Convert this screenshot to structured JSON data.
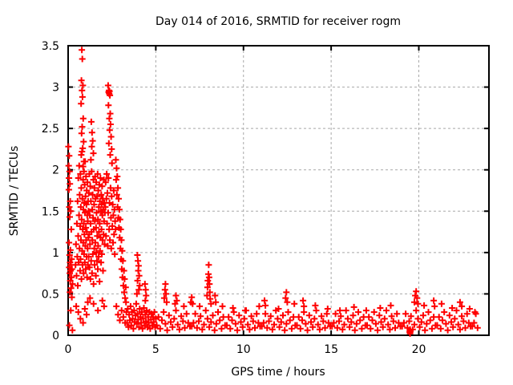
{
  "chart_data": {
    "type": "scatter",
    "title": "Day 014 of 2016, SRMTID for receiver rogm",
    "xlabel": "GPS time / hours",
    "ylabel": "SRMTID / TECUs",
    "xlim": [
      0,
      24
    ],
    "ylim": [
      0,
      3.5
    ],
    "xticks": [
      0,
      5,
      10,
      15,
      20
    ],
    "yticks": [
      0,
      0.5,
      1,
      1.5,
      2,
      2.5,
      3,
      3.5
    ],
    "grid": true,
    "legend_position": "none",
    "marker": "plus",
    "colors": {
      "marker": "#ff0000",
      "grid": "#a8a8a8",
      "axis": "#000000",
      "text": "#000000",
      "background": "#ffffff"
    },
    "series": [
      {
        "name": "SRMTID",
        "xy": [
          0.02,
          2.28,
          0.06,
          2.17,
          0.03,
          2.05,
          0.08,
          1.98,
          0.05,
          1.9,
          0.1,
          1.83,
          0.04,
          1.76,
          0.12,
          1.62,
          0.07,
          1.55,
          0.15,
          1.5,
          0.09,
          1.43,
          0.18,
          1.28,
          0.05,
          1.12,
          0.13,
          1.03,
          0.08,
          0.97,
          0.2,
          0.92,
          0.11,
          0.88,
          0.16,
          0.85,
          0.06,
          0.82,
          0.22,
          0.8,
          0.14,
          0.78,
          0.09,
          0.75,
          0.19,
          0.7,
          0.12,
          0.66,
          0.25,
          0.62,
          0.17,
          0.57,
          0.1,
          0.52,
          0.21,
          0.46,
          0.15,
          0.3,
          0.07,
          0.12,
          0.24,
          0.06,
          0.78,
          3.45,
          0.81,
          3.34,
          0.76,
          3.08,
          0.84,
          3.02,
          0.79,
          2.96,
          0.82,
          2.88,
          0.74,
          2.8,
          0.86,
          2.62,
          0.8,
          2.52,
          0.77,
          2.44,
          0.88,
          2.34,
          0.83,
          2.26,
          0.75,
          2.18,
          0.9,
          2.1,
          0.85,
          2.04,
          0.42,
          0.85,
          0.45,
          1.1,
          0.48,
          0.72,
          0.5,
          1.35,
          0.52,
          0.95,
          0.54,
          1.62,
          0.55,
          0.6,
          0.57,
          1.2,
          0.58,
          1.9,
          0.6,
          0.88,
          0.62,
          1.45,
          0.63,
          2.05,
          0.65,
          1.05,
          0.66,
          1.7,
          0.68,
          0.78,
          0.69,
          1.32,
          0.7,
          1.95,
          0.71,
          0.92,
          0.72,
          1.55,
          0.73,
          1.15,
          0.75,
          1.78,
          0.76,
          0.68,
          0.77,
          1.4,
          0.79,
          2.22,
          0.8,
          1.02,
          0.81,
          1.65,
          0.82,
          0.85,
          0.83,
          1.28,
          0.85,
          1.88,
          0.86,
          1.12,
          0.87,
          1.52,
          0.88,
          0.75,
          0.89,
          1.35,
          0.9,
          1.98,
          0.91,
          0.98,
          0.92,
          1.6,
          0.93,
          1.22,
          0.94,
          1.82,
          0.95,
          0.88,
          0.96,
          1.48,
          0.97,
          2.1,
          0.98,
          1.08,
          0.99,
          1.68,
          1.0,
          0.8,
          1.01,
          1.3,
          1.02,
          1.92,
          1.03,
          1.15,
          1.04,
          1.58,
          1.05,
          0.95,
          1.06,
          1.75,
          1.07,
          1.25,
          1.08,
          0.7,
          1.09,
          1.45,
          1.1,
          1.85,
          1.11,
          1.05,
          1.12,
          1.38,
          1.13,
          0.85,
          1.14,
          1.62,
          1.15,
          1.18,
          0.46,
          0.35,
          0.58,
          0.28,
          0.7,
          0.2,
          0.85,
          0.15,
          0.95,
          0.32,
          1.05,
          0.25,
          1.12,
          0.4,
          1.32,
          2.58,
          1.36,
          2.45,
          1.4,
          2.35,
          1.35,
          2.28,
          1.44,
          2.2,
          1.3,
          2.12,
          1.16,
          1.5,
          1.17,
          0.95,
          1.18,
          1.72,
          1.2,
          1.22,
          1.21,
          1.95,
          1.22,
          0.82,
          1.23,
          1.45,
          1.25,
          1.1,
          1.26,
          1.8,
          1.27,
          0.68,
          1.28,
          1.35,
          1.3,
          1.62,
          1.31,
          0.9,
          1.33,
          1.25,
          1.34,
          1.98,
          1.36,
          0.75,
          1.37,
          1.52,
          1.38,
          1.15,
          1.4,
          1.7,
          1.41,
          0.98,
          1.42,
          1.42,
          1.44,
          1.88,
          1.45,
          0.62,
          1.46,
          1.28,
          1.48,
          1.58,
          1.49,
          1.05,
          1.5,
          1.78,
          1.51,
          0.85,
          1.52,
          1.38,
          1.54,
          1.92,
          1.55,
          1.12,
          1.56,
          1.65,
          1.58,
          0.72,
          1.59,
          1.3,
          1.6,
          1.85,
          1.61,
          1.0,
          1.62,
          1.48,
          1.64,
          0.9,
          1.65,
          1.68,
          1.66,
          1.2,
          1.68,
          1.95,
          1.69,
          0.8,
          1.7,
          1.4,
          1.71,
          1.08,
          1.72,
          1.75,
          1.74,
          0.95,
          1.75,
          1.55,
          1.76,
          1.25,
          1.78,
          1.82,
          1.79,
          0.65,
          1.8,
          1.35,
          1.81,
          1.62,
          1.82,
          1.02,
          1.84,
          1.9,
          1.85,
          1.18,
          1.86,
          1.5,
          1.88,
          0.88,
          1.89,
          1.7,
          1.9,
          1.28,
          1.91,
          1.58,
          1.92,
          0.98,
          1.94,
          1.8,
          1.95,
          1.45,
          1.96,
          1.15,
          1.98,
          1.65,
          1.99,
          0.78,
          2.0,
          1.52,
          2.02,
          1.22,
          2.04,
          1.88,
          2.05,
          1.38,
          2.06,
          1.6,
          2.08,
          1.1,
          2.1,
          1.48,
          1.25,
          0.45,
          1.45,
          0.38,
          1.7,
          0.3,
          1.95,
          0.42,
          2.05,
          0.35,
          2.28,
          3.02,
          2.33,
          2.96,
          2.36,
          2.95,
          2.31,
          2.94,
          2.34,
          2.92,
          2.38,
          2.9,
          2.3,
          2.78,
          2.4,
          2.68,
          2.35,
          2.62,
          2.42,
          2.55,
          2.37,
          2.48,
          2.45,
          2.4,
          2.32,
          2.32,
          2.48,
          2.25,
          2.4,
          2.18,
          2.5,
          2.08,
          2.12,
          1.55,
          2.14,
          1.85,
          2.16,
          1.2,
          2.18,
          1.65,
          2.2,
          1.95,
          2.22,
          1.35,
          2.24,
          1.72,
          2.26,
          1.08,
          2.28,
          1.48,
          2.3,
          1.9,
          2.34,
          1.28,
          2.36,
          1.6,
          2.38,
          1.15,
          2.42,
          1.78,
          2.44,
          1.42,
          2.46,
          1.05,
          2.48,
          1.68,
          2.52,
          1.32,
          2.54,
          1.58,
          2.56,
          1.12,
          2.58,
          1.45,
          2.6,
          1.75,
          2.62,
          1.22,
          2.64,
          1.52,
          2.66,
          0.98,
          2.68,
          1.38,
          2.7,
          1.28,
          2.72,
          2.12,
          2.74,
          1.88,
          2.76,
          2.02,
          2.78,
          1.7,
          2.8,
          1.92,
          2.82,
          1.55,
          2.84,
          1.78,
          2.86,
          1.42,
          2.88,
          1.65,
          2.9,
          1.3,
          2.92,
          1.52,
          2.94,
          1.18,
          2.96,
          1.4,
          2.98,
          1.05,
          3.0,
          1.28,
          3.02,
          0.92,
          3.04,
          1.15,
          3.06,
          0.8,
          3.08,
          1.02,
          3.1,
          0.7,
          3.12,
          0.9,
          3.15,
          0.6,
          3.18,
          0.78,
          3.2,
          0.52,
          3.22,
          0.68,
          3.25,
          0.45,
          3.28,
          0.58,
          3.3,
          0.4,
          2.75,
          0.35,
          2.85,
          0.25,
          2.95,
          0.18,
          3.05,
          0.3,
          3.15,
          0.22,
          3.25,
          0.15,
          3.95,
          0.97,
          3.98,
          0.9,
          4.02,
          0.84,
          4.0,
          0.78,
          4.05,
          0.72,
          3.96,
          0.66,
          4.08,
          0.6,
          4.03,
          0.55,
          3.92,
          0.5,
          4.38,
          0.62,
          4.42,
          0.55,
          4.45,
          0.48,
          4.4,
          0.42,
          3.32,
          0.28,
          3.36,
          0.15,
          3.4,
          0.32,
          3.44,
          0.1,
          3.48,
          0.25,
          3.52,
          0.18,
          3.56,
          0.35,
          3.6,
          0.12,
          3.64,
          0.28,
          3.68,
          0.2,
          3.72,
          0.08,
          3.76,
          0.3,
          3.8,
          0.16,
          3.84,
          0.24,
          3.88,
          0.38,
          3.92,
          0.14,
          3.96,
          0.26,
          4.0,
          0.19,
          4.04,
          0.1,
          4.08,
          0.32,
          4.12,
          0.22,
          4.16,
          0.15,
          4.2,
          0.28,
          4.24,
          0.08,
          4.28,
          0.2,
          4.32,
          0.33,
          4.36,
          0.12,
          4.4,
          0.25,
          4.44,
          0.17,
          4.48,
          0.3,
          4.52,
          0.1,
          4.56,
          0.22,
          4.6,
          0.15,
          4.64,
          0.28,
          4.68,
          0.08,
          4.72,
          0.19,
          4.76,
          0.26,
          4.8,
          0.12,
          4.84,
          0.22,
          4.88,
          0.16,
          4.92,
          0.28,
          4.96,
          0.1,
          5.0,
          0.2,
          5.05,
          0.12,
          5.15,
          0.22,
          5.25,
          0.08,
          5.35,
          0.18,
          5.45,
          0.28,
          5.55,
          0.14,
          5.65,
          0.06,
          5.75,
          0.24,
          5.85,
          0.16,
          5.95,
          0.1,
          6.05,
          0.2,
          6.15,
          0.3,
          6.25,
          0.13,
          6.35,
          0.07,
          6.45,
          0.23,
          6.55,
          0.17,
          6.65,
          0.09,
          6.75,
          0.26,
          6.85,
          0.15,
          6.95,
          0.11,
          7.05,
          0.11,
          7.15,
          0.15,
          7.25,
          0.26,
          7.35,
          0.09,
          7.45,
          0.17,
          7.55,
          0.23,
          7.65,
          0.07,
          7.75,
          0.13,
          7.85,
          0.3,
          7.95,
          0.2,
          8.05,
          0.1,
          8.15,
          0.16,
          8.25,
          0.24,
          8.35,
          0.06,
          8.45,
          0.14,
          8.55,
          0.28,
          8.65,
          0.18,
          8.75,
          0.08,
          8.85,
          0.22,
          8.95,
          0.12,
          9.05,
          0.12,
          9.15,
          0.22,
          9.25,
          0.08,
          9.35,
          0.18,
          9.45,
          0.28,
          9.55,
          0.14,
          9.65,
          0.06,
          9.75,
          0.24,
          9.85,
          0.16,
          9.95,
          0.1,
          10.05,
          0.2,
          10.15,
          0.3,
          10.25,
          0.13,
          10.35,
          0.07,
          10.45,
          0.23,
          10.55,
          0.17,
          10.65,
          0.09,
          10.75,
          0.26,
          10.85,
          0.15,
          10.95,
          0.11,
          11.05,
          0.11,
          11.15,
          0.15,
          11.25,
          0.26,
          11.35,
          0.09,
          11.45,
          0.17,
          11.55,
          0.23,
          11.65,
          0.07,
          11.75,
          0.13,
          11.85,
          0.3,
          11.95,
          0.2,
          12.05,
          0.1,
          12.15,
          0.16,
          12.25,
          0.24,
          12.35,
          0.06,
          12.45,
          0.14,
          12.55,
          0.28,
          12.65,
          0.18,
          12.75,
          0.08,
          12.85,
          0.22,
          12.95,
          0.12,
          13.05,
          0.12,
          13.15,
          0.22,
          13.25,
          0.08,
          13.35,
          0.18,
          13.45,
          0.28,
          13.55,
          0.14,
          13.65,
          0.06,
          13.75,
          0.24,
          13.85,
          0.16,
          13.95,
          0.1,
          14.05,
          0.2,
          14.15,
          0.3,
          14.25,
          0.13,
          14.35,
          0.07,
          14.45,
          0.23,
          14.55,
          0.17,
          14.65,
          0.09,
          14.75,
          0.26,
          14.85,
          0.15,
          14.95,
          0.11,
          15.05,
          0.11,
          15.15,
          0.15,
          15.25,
          0.26,
          15.35,
          0.09,
          15.45,
          0.17,
          15.55,
          0.23,
          15.65,
          0.07,
          15.75,
          0.13,
          15.85,
          0.3,
          15.95,
          0.2,
          16.05,
          0.1,
          16.15,
          0.16,
          16.25,
          0.24,
          16.35,
          0.06,
          16.45,
          0.14,
          16.55,
          0.28,
          16.65,
          0.18,
          16.75,
          0.08,
          16.85,
          0.22,
          16.95,
          0.12,
          17.05,
          0.12,
          17.15,
          0.22,
          17.25,
          0.08,
          17.35,
          0.18,
          17.45,
          0.28,
          17.55,
          0.14,
          17.65,
          0.06,
          17.75,
          0.24,
          17.85,
          0.16,
          17.95,
          0.1,
          18.05,
          0.2,
          18.15,
          0.3,
          18.25,
          0.13,
          18.35,
          0.07,
          18.45,
          0.23,
          18.55,
          0.17,
          18.65,
          0.09,
          18.75,
          0.26,
          18.85,
          0.15,
          18.95,
          0.11,
          19.05,
          0.11,
          19.15,
          0.15,
          19.25,
          0.26,
          19.35,
          0.09,
          19.45,
          0.17,
          19.55,
          0.23,
          19.65,
          0.07,
          19.75,
          0.13,
          19.85,
          0.3,
          19.95,
          0.2,
          20.05,
          0.1,
          20.15,
          0.16,
          20.25,
          0.24,
          20.35,
          0.06,
          20.45,
          0.14,
          20.55,
          0.28,
          20.65,
          0.18,
          20.75,
          0.08,
          20.85,
          0.22,
          20.95,
          0.12,
          21.05,
          0.12,
          21.15,
          0.22,
          21.25,
          0.08,
          21.35,
          0.18,
          21.45,
          0.28,
          21.55,
          0.14,
          21.65,
          0.06,
          21.75,
          0.24,
          21.85,
          0.16,
          21.95,
          0.1,
          22.05,
          0.2,
          22.15,
          0.3,
          22.25,
          0.13,
          22.35,
          0.07,
          22.45,
          0.23,
          22.55,
          0.17,
          22.65,
          0.09,
          22.75,
          0.26,
          22.85,
          0.15,
          22.95,
          0.11,
          23.05,
          0.11,
          23.15,
          0.15,
          23.25,
          0.26,
          23.35,
          0.09,
          5.48,
          0.45,
          5.52,
          0.55,
          5.55,
          0.62,
          5.58,
          0.5,
          5.62,
          0.4,
          6.1,
          0.38,
          6.15,
          0.48,
          6.2,
          0.42,
          6.6,
          0.35,
          7.0,
          0.4,
          7.05,
          0.46,
          7.1,
          0.38,
          7.5,
          0.35,
          7.92,
          0.48,
          7.95,
          0.58,
          7.97,
          0.66,
          8.0,
          0.74,
          8.02,
          0.85,
          8.04,
          0.7,
          8.06,
          0.62,
          8.08,
          0.52,
          8.1,
          0.44,
          8.15,
          0.38,
          8.38,
          0.48,
          8.42,
          0.4,
          8.8,
          0.35,
          9.4,
          0.33,
          10.1,
          0.3,
          10.9,
          0.35,
          11.2,
          0.42,
          11.25,
          0.36,
          12.0,
          0.32,
          12.4,
          0.45,
          12.45,
          0.52,
          12.5,
          0.4,
          12.9,
          0.38,
          13.4,
          0.42,
          13.45,
          0.35,
          14.1,
          0.36,
          14.8,
          0.32,
          15.5,
          0.3,
          16.3,
          0.34,
          17.0,
          0.3,
          17.8,
          0.33,
          18.4,
          0.36,
          19.48,
          0.04,
          19.5,
          0.02,
          19.52,
          0.05,
          19.5,
          0.07,
          19.75,
          0.4,
          19.8,
          0.48,
          19.85,
          0.53,
          19.9,
          0.45,
          19.95,
          0.38,
          20.3,
          0.36,
          20.85,
          0.42,
          20.9,
          0.35,
          21.3,
          0.38,
          21.9,
          0.33,
          22.35,
          0.4,
          22.45,
          0.35,
          22.9,
          0.32,
          23.2,
          0.28
        ]
      }
    ]
  }
}
